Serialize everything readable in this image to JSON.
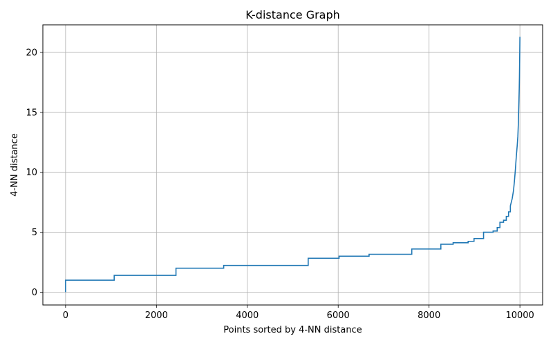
{
  "chart_data": {
    "type": "line",
    "title": "K-distance Graph",
    "xlabel": "Points sorted by 4-NN distance",
    "ylabel": "4-NN distance",
    "xlim": [
      -500,
      10500
    ],
    "ylim": [
      -1.07,
      22.3
    ],
    "xticks": [
      0,
      2000,
      4000,
      6000,
      8000,
      10000
    ],
    "yticks": [
      0,
      5,
      10,
      15,
      20
    ],
    "grid": true,
    "line_color": "#1f77b4",
    "series": [
      {
        "x": [
          0,
          0,
          1070,
          1070,
          2430,
          2430,
          3480,
          3480,
          5340,
          5340,
          6020,
          6020,
          6680,
          6680,
          7620,
          7620,
          8260,
          8260,
          8530,
          8530,
          8860,
          8860,
          8990,
          8990,
          9200,
          9200,
          9410,
          9410,
          9500,
          9500,
          9560,
          9560,
          9640,
          9640,
          9700,
          9700,
          9750,
          9750,
          9790,
          9790,
          9830,
          9860,
          9880,
          9900,
          9920,
          9940,
          9955,
          9965,
          9975,
          9985,
          9990,
          9995,
          9998,
          10000
        ],
        "y": [
          0,
          1.0,
          1.0,
          1.4,
          1.4,
          2.0,
          2.0,
          2.23,
          2.23,
          2.83,
          2.83,
          3.0,
          3.0,
          3.16,
          3.16,
          3.6,
          3.6,
          4.0,
          4.0,
          4.12,
          4.12,
          4.24,
          4.24,
          4.47,
          4.47,
          5.0,
          5.0,
          5.1,
          5.1,
          5.39,
          5.39,
          5.83,
          5.83,
          6.0,
          6.0,
          6.32,
          6.32,
          6.7,
          6.7,
          7.2,
          7.8,
          8.5,
          9.3,
          10.2,
          11.3,
          12.2,
          13.0,
          14.0,
          15.5,
          17.0,
          18.0,
          19.5,
          20.5,
          21.3
        ]
      }
    ]
  }
}
